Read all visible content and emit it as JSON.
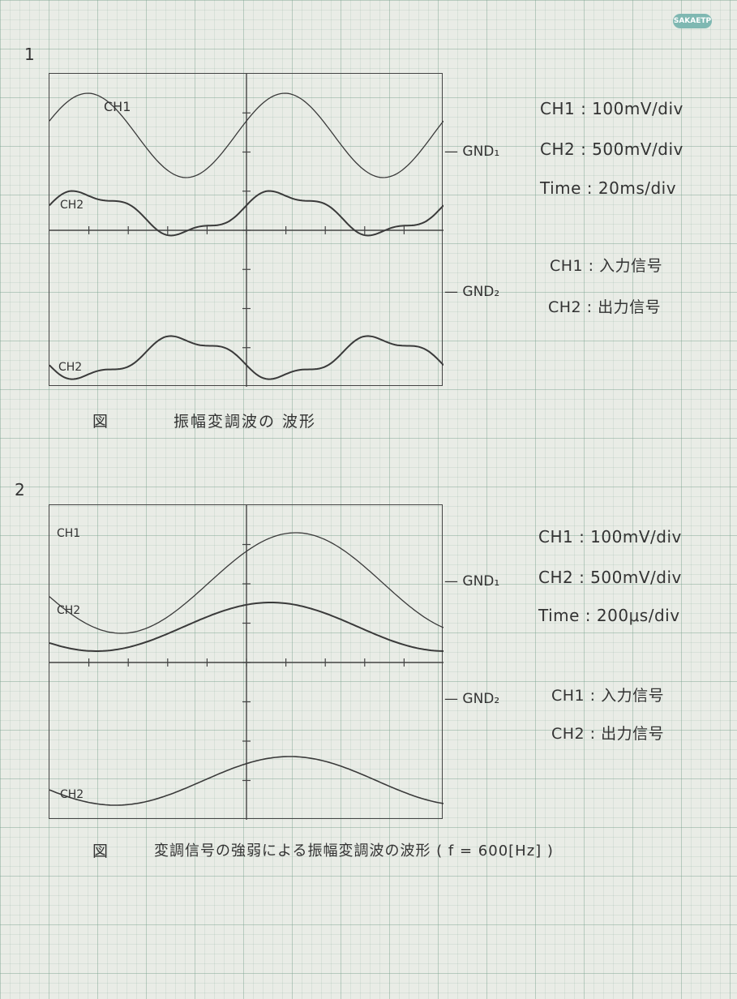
{
  "brand": "SAKAETP",
  "sections": [
    {
      "number": "1",
      "labels": {
        "ch1": "CH1",
        "ch2_top": "CH2",
        "ch2_bottom": "CH2"
      },
      "gnd1": "GND₁",
      "gnd2": "GND₂",
      "settings": [
        "CH1 : 100mV/div",
        "CH2 : 500mV/div",
        "Time : 20ms/div"
      ],
      "signals": [
        "CH1 : 入力信号",
        "CH2 : 出力信号"
      ],
      "caption_prefix": "図",
      "caption": "振幅変調波の 波形"
    },
    {
      "number": "2",
      "labels": {
        "ch1": "CH1",
        "ch2_top": "CH2",
        "ch2_bottom": "CH2"
      },
      "gnd1": "GND₁",
      "gnd2": "GND₂",
      "settings": [
        "CH1 : 100mV/div",
        "CH2 : 500mV/div",
        "Time : 200μs/div"
      ],
      "signals": [
        "CH1 : 入力信号",
        "CH2 : 出力信号"
      ],
      "caption_prefix": "図",
      "caption": "変調信号の強弱による振幅変調波の波形 ( f = 600[Hz] )"
    }
  ]
}
